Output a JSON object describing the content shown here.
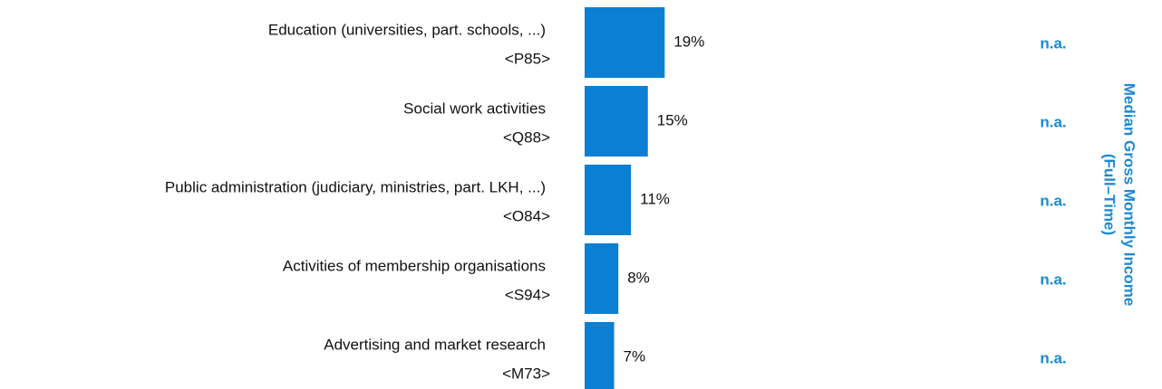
{
  "chart_data": {
    "type": "bar",
    "categories": [
      "Education (universities, part. schools, ...)",
      "Social work activities",
      "Public administration (judiciary, ministries, part. LKH, ...)",
      "Activities of membership organisations",
      "Advertising and market research"
    ],
    "category_codes": [
      "<P85>",
      "<Q88>",
      "<O84>",
      "<S94>",
      "<M73>"
    ],
    "values": [
      19,
      15,
      11,
      8,
      7
    ],
    "value_labels": [
      "19%",
      "15%",
      "11%",
      "8%",
      "7%"
    ],
    "color": "#0a7fd4",
    "xlim": [
      0,
      100
    ],
    "side_values": [
      "n.a.",
      "n.a.",
      "n.a.",
      "n.a.",
      "n.a."
    ],
    "side_title": [
      "Median Gross Monthly Income",
      "(Full–Time)"
    ],
    "side_color": "#1a8ad4"
  }
}
